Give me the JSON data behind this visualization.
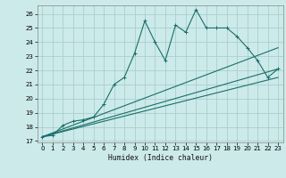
{
  "xlabel": "Humidex (Indice chaleur)",
  "xlim": [
    -0.5,
    23.5
  ],
  "ylim": [
    16.9,
    26.6
  ],
  "yticks": [
    17,
    18,
    19,
    20,
    21,
    22,
    23,
    24,
    25,
    26
  ],
  "xticks": [
    0,
    1,
    2,
    3,
    4,
    5,
    6,
    7,
    8,
    9,
    10,
    11,
    12,
    13,
    14,
    15,
    16,
    17,
    18,
    19,
    20,
    21,
    22,
    23
  ],
  "bg_color": "#cceaea",
  "line_color": "#1a6e6a",
  "grid_color": "#aacece",
  "main_line": {
    "x": [
      0,
      1,
      2,
      3,
      4,
      5,
      6,
      7,
      8,
      9,
      10,
      11,
      12,
      13,
      14,
      15,
      16,
      17,
      18,
      19,
      20,
      21,
      22,
      23
    ],
    "y": [
      17.3,
      17.4,
      18.1,
      18.4,
      18.5,
      18.7,
      19.6,
      21.0,
      21.5,
      23.2,
      25.5,
      24.0,
      22.7,
      25.2,
      24.7,
      26.3,
      25.0,
      25.0,
      25.0,
      24.4,
      23.6,
      22.7,
      21.5,
      22.1
    ]
  },
  "trend_lines": [
    {
      "x": [
        0,
        23
      ],
      "y": [
        17.3,
        23.6
      ]
    },
    {
      "x": [
        0,
        23
      ],
      "y": [
        17.3,
        22.1
      ]
    },
    {
      "x": [
        0,
        23
      ],
      "y": [
        17.3,
        21.5
      ]
    }
  ]
}
